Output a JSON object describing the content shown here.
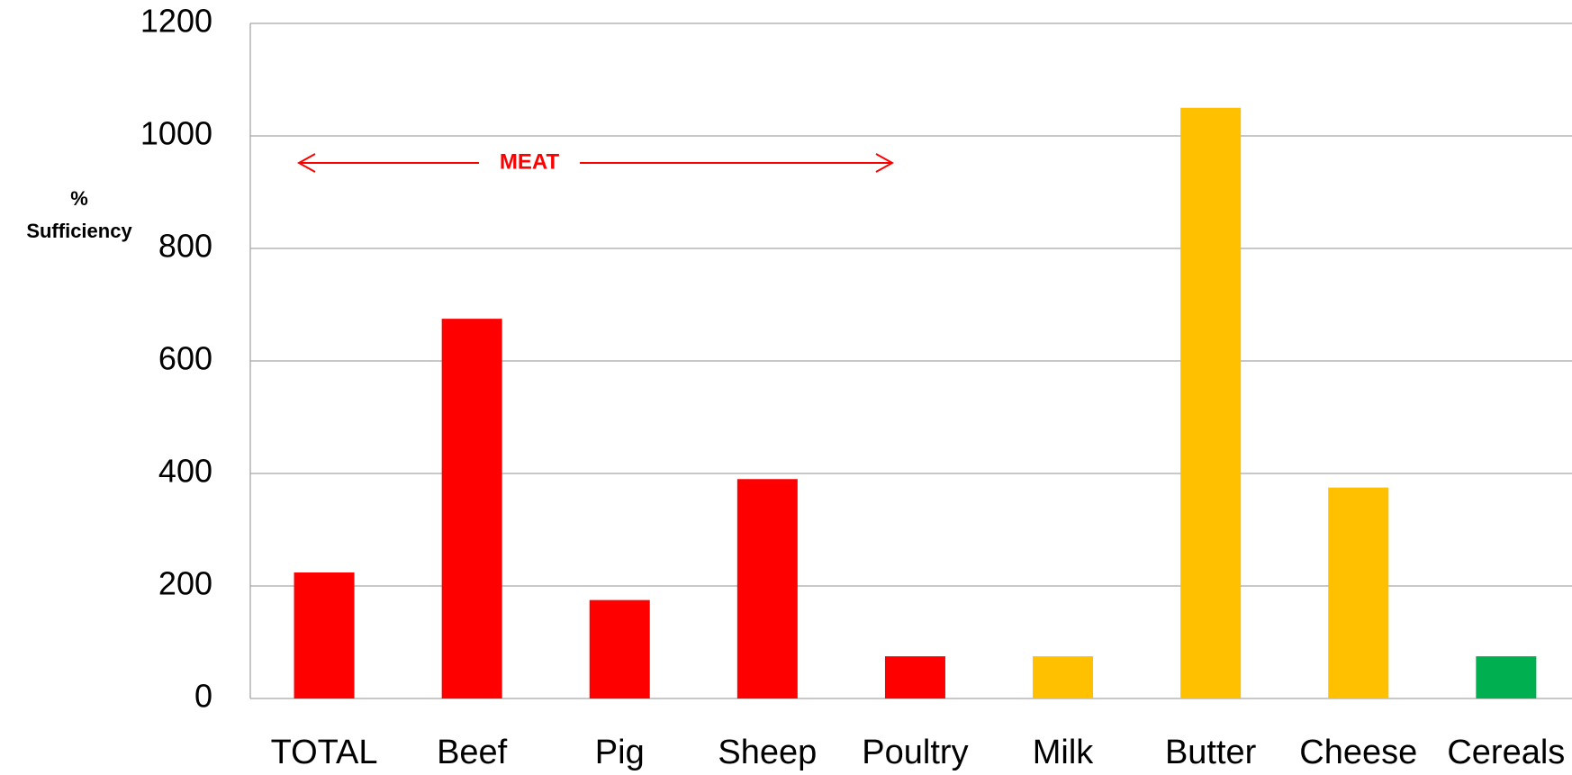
{
  "chart_data": {
    "type": "bar",
    "y_label": "% Sufficiency",
    "annotation": "MEAT",
    "categories": [
      "TOTAL",
      "Beef",
      "Pig",
      "Sheep",
      "Poultry",
      "Milk",
      "Butter",
      "Cheese",
      "Cereals"
    ],
    "values": [
      224,
      675,
      175,
      390,
      75,
      75,
      1050,
      375,
      75
    ],
    "colors": [
      "#ff0000",
      "#ff0000",
      "#ff0000",
      "#ff0000",
      "#ff0000",
      "#ffc000",
      "#ffc000",
      "#ffc000",
      "#00b050"
    ],
    "ylim": [
      0,
      1200
    ],
    "yticks": [
      0,
      200,
      400,
      600,
      800,
      1000,
      1200
    ],
    "grid": true
  }
}
